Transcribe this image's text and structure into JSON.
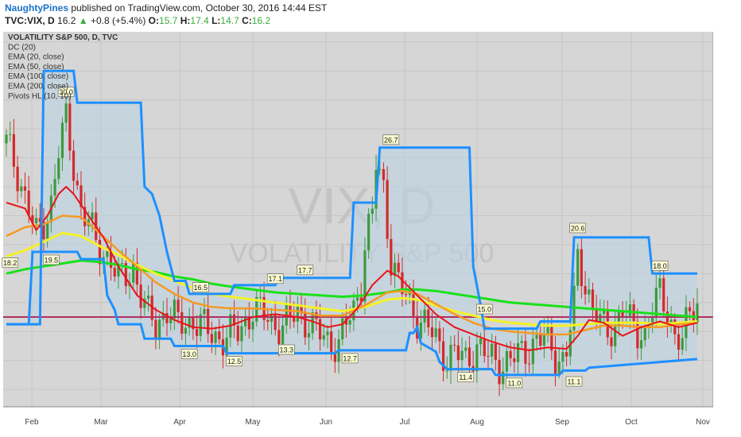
{
  "header": {
    "user": "NaughtyPines",
    "published": "published on TradingView.com, October 30, 2016 14:44 EST",
    "symbol": "TVC:VIX, D",
    "last": "16.2",
    "change": "+0.8 (+5.4%)",
    "o_label": "O:",
    "o_value": "15.7",
    "h_label": "H:",
    "h_value": "17.4",
    "l_label": "L:",
    "l_value": "14.7",
    "c_label": "C:",
    "c_value": "16.2"
  },
  "legend": [
    "VOLATILITY S&P 500, D, TVC",
    "DC (20)",
    "EMA (20, close)",
    "EMA (50, close)",
    "EMA (100, close)",
    "EMA (200, close)",
    "Pivots HL (10, 10)"
  ],
  "watermark": {
    "symbol": "VIX, D",
    "name": "VOLATILITY S&P 500"
  },
  "colors": {
    "background": "#d6d6d6",
    "grid": "#c6c6c6",
    "up_candle": "#3d9a3d",
    "down_candle": "#d42a2a",
    "donchian": "#1e90ff",
    "donchian_fill": "#b9d3e6",
    "ema20": "#e8141a",
    "ema50": "#f59a22",
    "ema100": "#f4f227",
    "ema200": "#19e119",
    "level_line": "#b03060",
    "last_tag": "#3cab3c"
  },
  "chart_data": {
    "type": "candlestick",
    "x_axis": {
      "ticks": [
        "Feb",
        "Mar",
        "Apr",
        "May",
        "Jun",
        "Jul",
        "Aug",
        "Sep",
        "Oct",
        "Nov"
      ]
    },
    "y_axis": {
      "range": [
        8.8,
        34.7
      ],
      "ticks": [
        "10.0",
        "12.0",
        "14.0",
        "16.0",
        "18.0",
        "20.0",
        "22.0",
        "24.0",
        "26.0",
        "28.0",
        "30.0",
        "32.0",
        "34.0"
      ]
    },
    "last_price_tag": "16.2",
    "level_tag": "15.0",
    "level_line_value": 15.0,
    "donchian_upper": [
      [
        0,
        14.5
      ],
      [
        9,
        14.5
      ],
      [
        10,
        32.0
      ],
      [
        18,
        32.0
      ],
      [
        19,
        29.8
      ],
      [
        36,
        29.8
      ],
      [
        37,
        24.0
      ],
      [
        39,
        23.5
      ],
      [
        41,
        22.0
      ],
      [
        43,
        19.5
      ],
      [
        45,
        17.5
      ],
      [
        48,
        17.5
      ],
      [
        49,
        16.6
      ],
      [
        60,
        16.6
      ],
      [
        61,
        17.2
      ],
      [
        72,
        17.2
      ],
      [
        73,
        17.7
      ],
      [
        92,
        17.7
      ],
      [
        93,
        22.9
      ],
      [
        99,
        22.9
      ],
      [
        100,
        26.7
      ],
      [
        124,
        26.7
      ],
      [
        125,
        18.5
      ],
      [
        127,
        15.8
      ],
      [
        128,
        14.2
      ],
      [
        142,
        14.2
      ],
      [
        143,
        14.7
      ],
      [
        151,
        14.7
      ],
      [
        152,
        20.5
      ],
      [
        172,
        20.5
      ],
      [
        173,
        18.0
      ],
      [
        185,
        18.0
      ]
    ],
    "donchian_lower": [
      [
        0,
        14.5
      ],
      [
        6,
        14.5
      ],
      [
        7,
        19.5
      ],
      [
        19,
        19.5
      ],
      [
        20,
        19.0
      ],
      [
        26,
        19.0
      ],
      [
        27,
        16.5
      ],
      [
        29,
        15.5
      ],
      [
        30,
        14.5
      ],
      [
        36,
        14.5
      ],
      [
        37,
        13.5
      ],
      [
        44,
        13.5
      ],
      [
        45,
        13.0
      ],
      [
        58,
        13.0
      ],
      [
        59,
        12.5
      ],
      [
        88,
        12.5
      ],
      [
        89,
        12.7
      ],
      [
        107,
        12.7
      ],
      [
        108,
        13.9
      ],
      [
        109,
        13.9
      ],
      [
        110,
        14.3
      ],
      [
        111,
        13.2
      ],
      [
        115,
        12.6
      ],
      [
        116,
        11.9
      ],
      [
        118,
        11.4
      ],
      [
        130,
        11.4
      ],
      [
        131,
        11.0
      ],
      [
        148,
        11.0
      ],
      [
        149,
        11.3
      ],
      [
        155,
        11.3
      ],
      [
        156,
        11.5
      ],
      [
        180,
        12.0
      ],
      [
        185,
        12.1
      ]
    ],
    "ema20": [
      [
        0,
        22.9
      ],
      [
        5,
        22.5
      ],
      [
        8,
        21.0
      ],
      [
        11,
        22.0
      ],
      [
        14,
        23.5
      ],
      [
        16,
        24.0
      ],
      [
        18,
        23.5
      ],
      [
        22,
        22.0
      ],
      [
        26,
        20.5
      ],
      [
        30,
        18.5
      ],
      [
        35,
        16.5
      ],
      [
        40,
        15.5
      ],
      [
        45,
        14.8
      ],
      [
        50,
        14.3
      ],
      [
        55,
        14.2
      ],
      [
        60,
        14.4
      ],
      [
        66,
        15.0
      ],
      [
        72,
        15.2
      ],
      [
        78,
        15.0
      ],
      [
        82,
        14.7
      ],
      [
        86,
        14.3
      ],
      [
        90,
        14.5
      ],
      [
        94,
        15.6
      ],
      [
        98,
        17.2
      ],
      [
        102,
        18.2
      ],
      [
        105,
        17.8
      ],
      [
        110,
        16.5
      ],
      [
        115,
        15.2
      ],
      [
        120,
        14.3
      ],
      [
        125,
        13.8
      ],
      [
        130,
        13.3
      ],
      [
        135,
        12.9
      ],
      [
        140,
        12.7
      ],
      [
        145,
        12.9
      ],
      [
        150,
        12.8
      ],
      [
        153,
        13.7
      ],
      [
        156,
        14.8
      ],
      [
        160,
        14.6
      ],
      [
        165,
        13.7
      ],
      [
        170,
        14.3
      ],
      [
        175,
        14.7
      ],
      [
        180,
        14.3
      ],
      [
        185,
        14.6
      ]
    ],
    "ema50": [
      [
        0,
        20.6
      ],
      [
        5,
        21.2
      ],
      [
        10,
        21.4
      ],
      [
        15,
        22.0
      ],
      [
        20,
        21.9
      ],
      [
        25,
        20.8
      ],
      [
        30,
        19.6
      ],
      [
        35,
        18.5
      ],
      [
        40,
        17.4
      ],
      [
        45,
        16.6
      ],
      [
        50,
        16.0
      ],
      [
        55,
        15.7
      ],
      [
        60,
        15.6
      ],
      [
        66,
        15.6
      ],
      [
        72,
        15.5
      ],
      [
        78,
        15.4
      ],
      [
        84,
        15.1
      ],
      [
        90,
        15.1
      ],
      [
        96,
        15.8
      ],
      [
        102,
        16.7
      ],
      [
        106,
        16.8
      ],
      [
        110,
        16.6
      ],
      [
        115,
        15.9
      ],
      [
        120,
        15.2
      ],
      [
        125,
        14.6
      ],
      [
        130,
        14.2
      ],
      [
        135,
        14.0
      ],
      [
        140,
        13.9
      ],
      [
        145,
        13.8
      ],
      [
        150,
        13.8
      ],
      [
        155,
        14.1
      ],
      [
        160,
        14.4
      ],
      [
        165,
        14.4
      ],
      [
        170,
        14.3
      ],
      [
        175,
        14.3
      ],
      [
        180,
        14.5
      ],
      [
        185,
        14.6
      ]
    ],
    "ema100": [
      [
        0,
        19.2
      ],
      [
        5,
        19.6
      ],
      [
        10,
        20.2
      ],
      [
        15,
        20.8
      ],
      [
        20,
        20.6
      ],
      [
        25,
        19.9
      ],
      [
        30,
        19.3
      ],
      [
        35,
        18.6
      ],
      [
        40,
        18.0
      ],
      [
        45,
        17.5
      ],
      [
        50,
        17.0
      ],
      [
        55,
        16.6
      ],
      [
        60,
        16.4
      ],
      [
        66,
        16.2
      ],
      [
        72,
        16.0
      ],
      [
        78,
        15.8
      ],
      [
        84,
        15.6
      ],
      [
        90,
        15.4
      ],
      [
        96,
        15.7
      ],
      [
        102,
        16.2
      ],
      [
        106,
        16.3
      ],
      [
        110,
        16.2
      ],
      [
        115,
        15.8
      ],
      [
        120,
        15.4
      ],
      [
        125,
        15.1
      ],
      [
        130,
        14.8
      ],
      [
        135,
        14.6
      ],
      [
        140,
        14.5
      ],
      [
        145,
        14.4
      ],
      [
        150,
        14.4
      ],
      [
        155,
        14.5
      ],
      [
        160,
        14.6
      ],
      [
        165,
        14.6
      ],
      [
        170,
        14.6
      ],
      [
        175,
        14.5
      ],
      [
        180,
        14.6
      ],
      [
        185,
        14.7
      ]
    ],
    "ema200": [
      [
        0,
        18.0
      ],
      [
        5,
        18.3
      ],
      [
        10,
        18.5
      ],
      [
        15,
        18.7
      ],
      [
        20,
        18.9
      ],
      [
        25,
        18.8
      ],
      [
        30,
        18.6
      ],
      [
        35,
        18.3
      ],
      [
        40,
        18.1
      ],
      [
        45,
        17.8
      ],
      [
        50,
        17.6
      ],
      [
        55,
        17.3
      ],
      [
        60,
        17.1
      ],
      [
        66,
        16.9
      ],
      [
        72,
        16.7
      ],
      [
        78,
        16.6
      ],
      [
        84,
        16.5
      ],
      [
        90,
        16.4
      ],
      [
        96,
        16.5
      ],
      [
        102,
        16.7
      ],
      [
        106,
        16.9
      ],
      [
        110,
        16.9
      ],
      [
        115,
        16.8
      ],
      [
        120,
        16.6
      ],
      [
        125,
        16.4
      ],
      [
        130,
        16.2
      ],
      [
        135,
        16.0
      ],
      [
        140,
        15.9
      ],
      [
        145,
        15.8
      ],
      [
        150,
        15.7
      ],
      [
        155,
        15.6
      ],
      [
        160,
        15.5
      ],
      [
        165,
        15.4
      ],
      [
        170,
        15.3
      ],
      [
        175,
        15.2
      ],
      [
        180,
        15.1
      ],
      [
        185,
        15.0
      ]
    ],
    "close_path": [
      [
        0,
        27.0
      ],
      [
        3,
        25.0
      ],
      [
        6,
        22.5
      ],
      [
        8,
        20.5
      ],
      [
        10,
        21.5
      ],
      [
        12,
        23.0
      ],
      [
        14,
        26.5
      ],
      [
        16,
        28.5
      ],
      [
        18,
        25.5
      ],
      [
        20,
        22.5
      ],
      [
        22,
        21.5
      ],
      [
        24,
        20.0
      ],
      [
        26,
        19.5
      ],
      [
        28,
        19.0
      ],
      [
        30,
        17.5
      ],
      [
        32,
        17.8
      ],
      [
        34,
        18.5
      ],
      [
        36,
        16.5
      ],
      [
        38,
        15.0
      ],
      [
        40,
        14.5
      ],
      [
        43,
        15.5
      ],
      [
        46,
        14.5
      ],
      [
        50,
        14.8
      ],
      [
        54,
        14.0
      ],
      [
        58,
        13.5
      ],
      [
        62,
        14.0
      ],
      [
        66,
        15.5
      ],
      [
        70,
        15.0
      ],
      [
        74,
        14.2
      ],
      [
        78,
        15.5
      ],
      [
        82,
        14.2
      ],
      [
        86,
        13.5
      ],
      [
        89,
        13.0
      ],
      [
        91,
        14.5
      ],
      [
        93,
        15.5
      ],
      [
        95,
        17.5
      ],
      [
        96,
        20.0
      ],
      [
        98,
        22.0
      ],
      [
        99,
        25.5
      ],
      [
        101,
        24.0
      ],
      [
        103,
        19.0
      ],
      [
        105,
        17.2
      ],
      [
        108,
        16.0
      ],
      [
        110,
        15.0
      ],
      [
        112,
        14.5
      ],
      [
        114,
        13.8
      ],
      [
        116,
        13.0
      ],
      [
        118,
        12.2
      ],
      [
        120,
        12.5
      ],
      [
        123,
        12.0
      ],
      [
        126,
        13.0
      ],
      [
        129,
        12.2
      ],
      [
        132,
        11.8
      ],
      [
        135,
        12.0
      ],
      [
        138,
        12.5
      ],
      [
        141,
        13.2
      ],
      [
        144,
        13.5
      ],
      [
        147,
        12.5
      ],
      [
        149,
        12.0
      ],
      [
        150,
        12.5
      ],
      [
        152,
        16.0
      ],
      [
        153,
        19.0
      ],
      [
        155,
        17.5
      ],
      [
        157,
        15.5
      ],
      [
        159,
        14.5
      ],
      [
        161,
        14.0
      ],
      [
        163,
        14.5
      ],
      [
        165,
        15.5
      ],
      [
        167,
        14.5
      ],
      [
        169,
        14.0
      ],
      [
        171,
        14.0
      ],
      [
        173,
        15.5
      ],
      [
        175,
        16.5
      ],
      [
        177,
        15.5
      ],
      [
        179,
        13.8
      ],
      [
        181,
        13.2
      ],
      [
        183,
        15.2
      ],
      [
        185,
        16.2
      ]
    ],
    "pivots": [
      {
        "i": 1,
        "value": 18.2,
        "label": "18.2",
        "pos": "top"
      },
      {
        "i": 12,
        "value": 19.5,
        "label": "19.5",
        "pos": "bottom"
      },
      {
        "i": 16,
        "value": 30.0,
        "label": "30.0",
        "pos": "top"
      },
      {
        "i": 49,
        "value": 13.0,
        "label": "13.0",
        "pos": "bottom"
      },
      {
        "i": 52,
        "value": 16.5,
        "label": "16.5",
        "pos": "top"
      },
      {
        "i": 61,
        "value": 12.5,
        "label": "12.5",
        "pos": "bottom"
      },
      {
        "i": 72,
        "value": 17.1,
        "label": "17.1",
        "pos": "top"
      },
      {
        "i": 75,
        "value": 13.3,
        "label": "13.3",
        "pos": "bottom"
      },
      {
        "i": 80,
        "value": 17.7,
        "label": "17.7",
        "pos": "top"
      },
      {
        "i": 92,
        "value": 12.7,
        "label": "12.7",
        "pos": "bottom"
      },
      {
        "i": 103,
        "value": 26.7,
        "label": "26.7",
        "pos": "top"
      },
      {
        "i": 123,
        "value": 11.4,
        "label": "11.4",
        "pos": "bottom"
      },
      {
        "i": 128,
        "value": 15.0,
        "label": "15.0",
        "pos": "top"
      },
      {
        "i": 136,
        "value": 11.0,
        "label": "11.0",
        "pos": "bottom"
      },
      {
        "i": 153,
        "value": 20.6,
        "label": "20.6",
        "pos": "top"
      },
      {
        "i": 152,
        "value": 11.1,
        "label": "11.1",
        "pos": "bottom"
      },
      {
        "i": 175,
        "value": 18.0,
        "label": "18.0",
        "pos": "top"
      }
    ]
  }
}
